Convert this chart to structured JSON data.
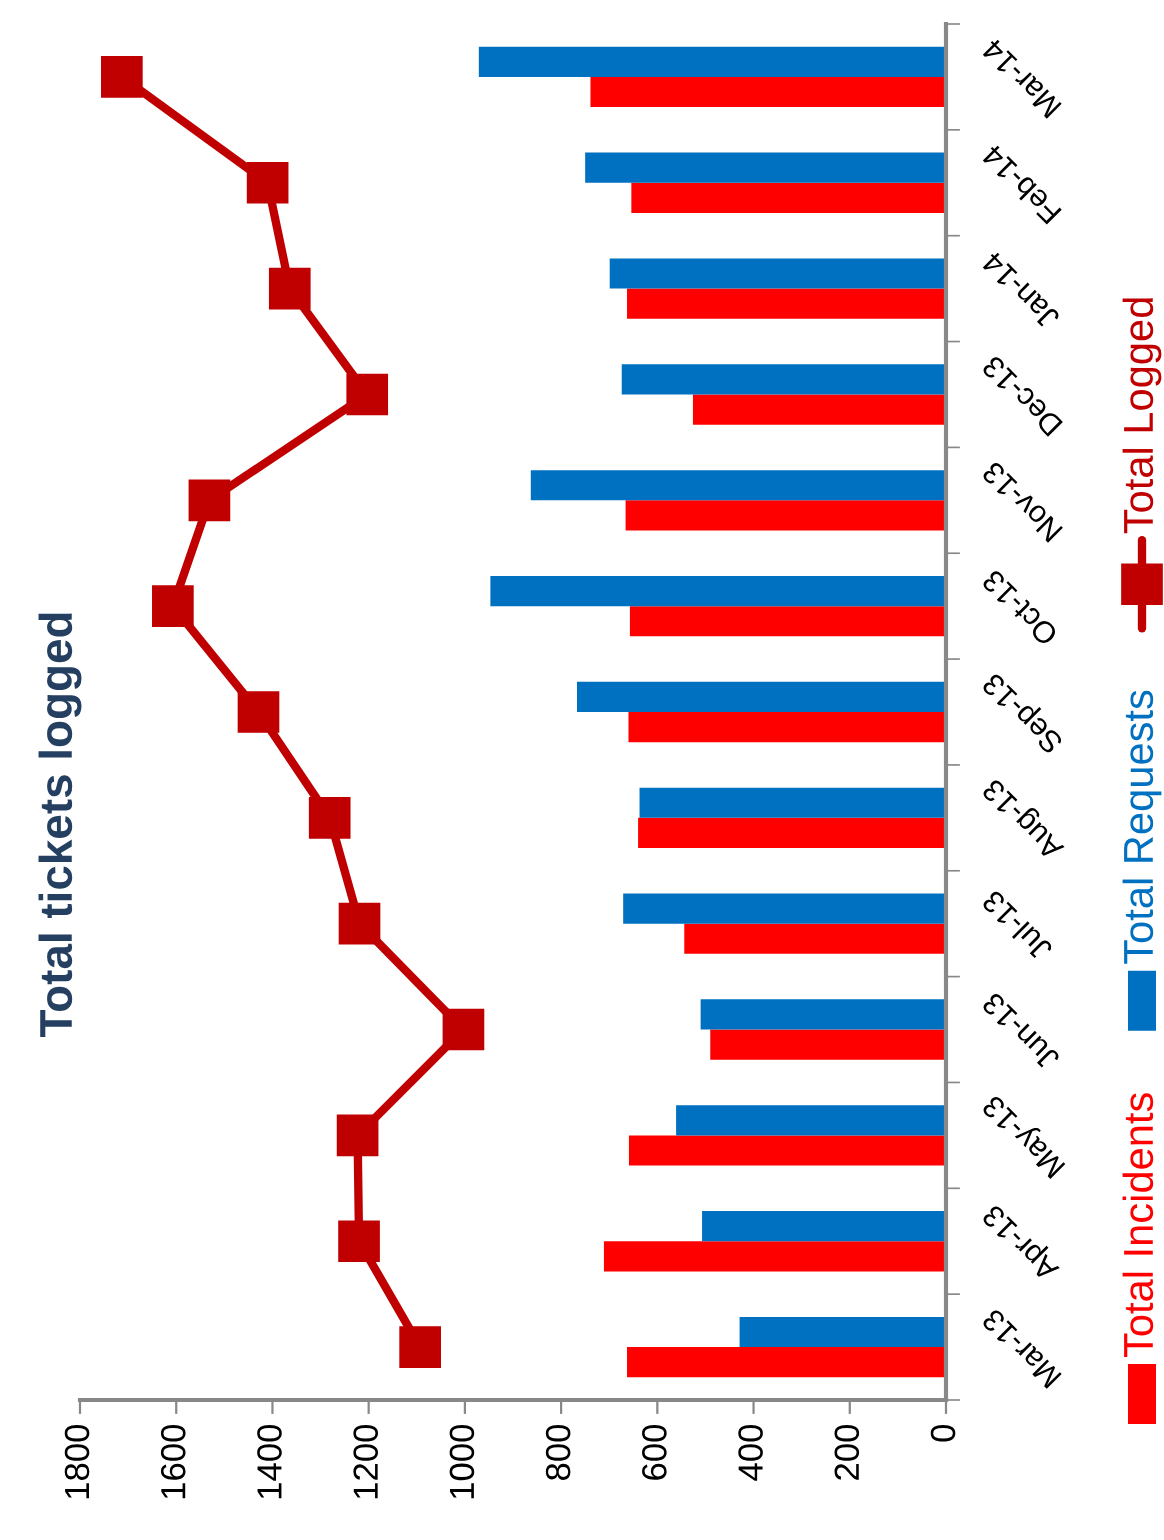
{
  "chart_data": {
    "type": "bar",
    "orientation": "horizontal",
    "title": "Total tickets logged",
    "categories": [
      "Mar-14",
      "Feb-14",
      "Jan-14",
      "Dec-13",
      "Nov-13",
      "Oct-13",
      "Sep-13",
      "Aug-13",
      "Jul-13",
      "Jun-13",
      "May-13",
      "Apr-13",
      "Mar-13"
    ],
    "series": [
      {
        "name": "Total Incidents",
        "color": "#ff0000",
        "values": [
          739,
          654,
          663,
          526,
          666,
          657,
          660,
          640,
          544,
          490,
          659,
          711,
          663
        ]
      },
      {
        "name": "Total Requests",
        "color": "#0070c0",
        "values": [
          971,
          750,
          699,
          674,
          863,
          947,
          767,
          637,
          671,
          510,
          561,
          507,
          429
        ]
      },
      {
        "name": "Total Logged",
        "type": "line",
        "color": "#c00000",
        "marker": "square",
        "line_style": "solid",
        "values": [
          1713,
          1410,
          1364,
          1203,
          1531,
          1607,
          1429,
          1281,
          1219,
          1003,
          1223,
          1220,
          1093
        ]
      }
    ],
    "xlim": [
      1800,
      0
    ],
    "xticks": [
      1800,
      1600,
      1400,
      1200,
      1000,
      800,
      600,
      400,
      200,
      0
    ],
    "grid": false,
    "legend": "right"
  }
}
